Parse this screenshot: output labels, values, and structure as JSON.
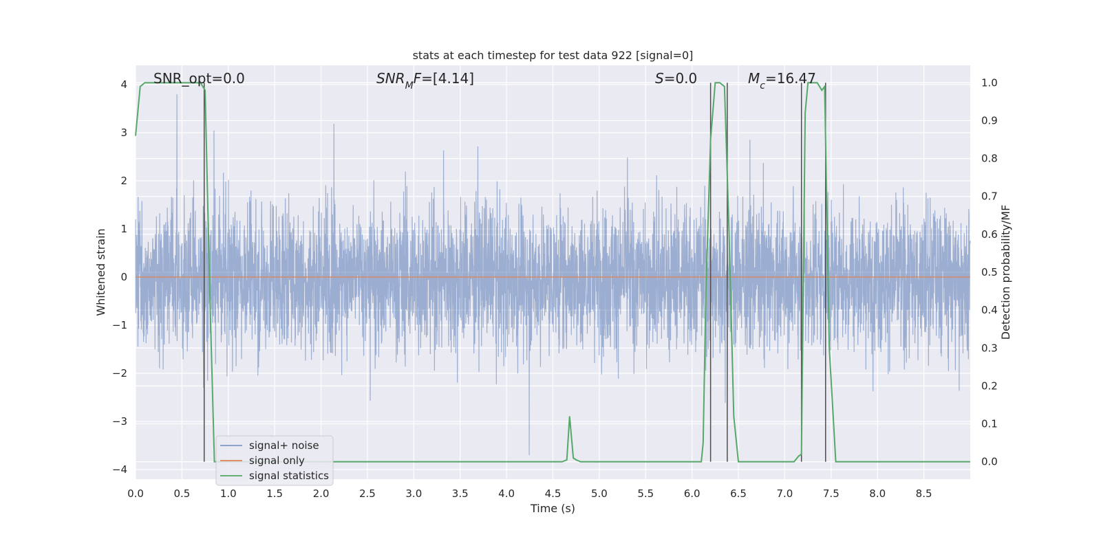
{
  "chart_data": {
    "type": "line",
    "title": "stats at each timestep for test data 922 [signal=0]",
    "xlabel": "Time (s)",
    "ylabel_left": "Whitened strain",
    "ylabel_right": "Detection probability/MF",
    "xlim": [
      0,
      9.0
    ],
    "ylim_left": [
      -4.2,
      4.4
    ],
    "ylim_right": [
      -0.046,
      1.046
    ],
    "x_ticks": [
      "0.0",
      "0.5",
      "1.0",
      "1.5",
      "2.0",
      "2.5",
      "3.0",
      "3.5",
      "4.0",
      "4.5",
      "5.0",
      "5.5",
      "6.0",
      "6.5",
      "7.0",
      "7.5",
      "8.0",
      "8.5"
    ],
    "y_ticks_left": [
      "−4",
      "−3",
      "−2",
      "−1",
      "0",
      "1",
      "2",
      "3",
      "4"
    ],
    "y_ticks_right": [
      "0.0",
      "0.1",
      "0.2",
      "0.3",
      "0.4",
      "0.5",
      "0.6",
      "0.7",
      "0.8",
      "0.9",
      "1.0"
    ],
    "grid": true,
    "legend_position": "lower-left",
    "annotations": {
      "snr_opt": "SNR_opt=0.0",
      "snr_mf": "SNR_MF=[4.14]",
      "s": "S=0.0",
      "mc": "M_c=16.47"
    },
    "series": [
      {
        "name": "signal+ noise",
        "color": "#4c72b0",
        "description_kind": "dense whitened noise",
        "envelope_typical": [
          -1.5,
          2.0
        ],
        "envelope_extreme": [
          -3.7,
          3.8
        ]
      },
      {
        "name": "signal only",
        "color": "#dd8452",
        "x": [
          0,
          9.0
        ],
        "y": [
          0,
          0
        ]
      },
      {
        "name": "signal statistics",
        "color": "#55a868",
        "axis": "right",
        "x": [
          0.0,
          0.05,
          0.1,
          0.15,
          0.7,
          0.75,
          0.8,
          0.85,
          4.55,
          4.6,
          4.65,
          4.68,
          4.72,
          4.75,
          4.8,
          6.1,
          6.12,
          6.15,
          6.2,
          6.25,
          6.3,
          6.35,
          6.4,
          6.45,
          6.5,
          7.1,
          7.15,
          7.18,
          7.22,
          7.25,
          7.35,
          7.4,
          7.43,
          7.48,
          7.55,
          7.6,
          9.0
        ],
        "y": [
          0.86,
          0.99,
          1.0,
          1.0,
          1.0,
          0.98,
          0.45,
          0.0,
          0.0,
          0.0,
          0.005,
          0.12,
          0.01,
          0.005,
          0.0,
          0.0,
          0.05,
          0.45,
          0.85,
          1.0,
          1.0,
          0.99,
          0.6,
          0.12,
          0.0,
          0.0,
          0.015,
          0.02,
          0.92,
          1.0,
          1.0,
          0.98,
          0.99,
          0.3,
          0.0,
          0.0,
          0.0
        ]
      }
    ],
    "vertical_markers": {
      "color": "#4d4d4d",
      "x": [
        0.74,
        6.2,
        6.38,
        7.18,
        7.44
      ]
    }
  },
  "legend": {
    "items": [
      {
        "label": "signal+ noise",
        "color": "#4c72b0"
      },
      {
        "label": "signal only",
        "color": "#dd8452"
      },
      {
        "label": "signal statistics",
        "color": "#55a868"
      }
    ]
  },
  "colors": {
    "plot_bg": "#eaeaf2",
    "grid": "#ffffff"
  }
}
